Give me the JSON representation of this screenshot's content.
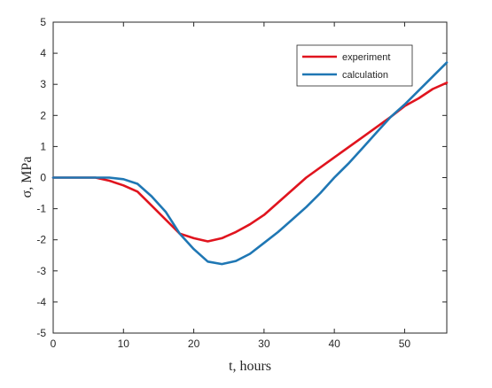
{
  "chart_data": {
    "type": "line",
    "xlabel": "t, hours",
    "ylabel": "σ, MPa",
    "xlim": [
      0,
      56
    ],
    "ylim": [
      -5,
      5
    ],
    "x_ticks": [
      "0",
      "10",
      "20",
      "30",
      "40",
      "50"
    ],
    "y_ticks": [
      "-5",
      "-4",
      "-3",
      "-2",
      "-1",
      "0",
      "1",
      "2",
      "3",
      "4",
      "5"
    ],
    "grid": false,
    "legend_position": "top-right",
    "series": [
      {
        "name": "experiment",
        "color": "#e0141e",
        "x": [
          0,
          4,
          6,
          8,
          10,
          12,
          14,
          16,
          18,
          20,
          22,
          24,
          26,
          28,
          30,
          33,
          36,
          40,
          44,
          48,
          50,
          52,
          54,
          56
        ],
        "y": [
          0,
          0,
          0,
          -0.1,
          -0.25,
          -0.45,
          -0.9,
          -1.35,
          -1.8,
          -1.95,
          -2.05,
          -1.95,
          -1.75,
          -1.5,
          -1.2,
          -0.6,
          0,
          0.65,
          1.3,
          1.95,
          2.3,
          2.55,
          2.85,
          3.05
        ]
      },
      {
        "name": "calculation",
        "color": "#1f77b4",
        "x": [
          0,
          4,
          6,
          8,
          10,
          12,
          14,
          16,
          18,
          20,
          22,
          24,
          26,
          28,
          30,
          32,
          34,
          36,
          38,
          40,
          42,
          44,
          46,
          48,
          50,
          52,
          54,
          56
        ],
        "y": [
          0,
          0,
          0,
          0,
          -0.05,
          -0.2,
          -0.6,
          -1.1,
          -1.8,
          -2.3,
          -2.7,
          -2.78,
          -2.68,
          -2.45,
          -2.1,
          -1.75,
          -1.35,
          -0.95,
          -0.5,
          0,
          0.45,
          0.95,
          1.45,
          1.95,
          2.35,
          2.8,
          3.25,
          3.7
        ]
      }
    ]
  }
}
